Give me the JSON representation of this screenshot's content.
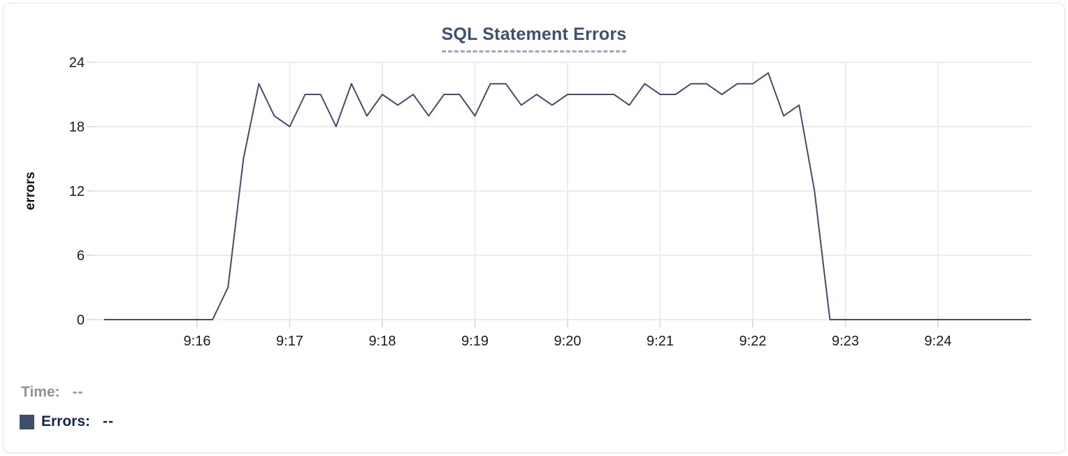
{
  "panel": {
    "title": "SQL Statement Errors"
  },
  "readout": {
    "time_label": "Time:",
    "time_value": "--",
    "errors_label": "Errors:",
    "errors_value": "--"
  },
  "colors": {
    "series": "#3f4e6c",
    "title": "#3d5070",
    "title_underline": "#9aa7c2",
    "gridline": "#ececec",
    "tick_mark": "#dedfe1",
    "tick_label": "#1b1b1b",
    "axis_label": "#111111",
    "time_readout": "#8f9296",
    "errors_readout": "#16254c",
    "card_border": "#e2e4e8"
  },
  "chart_data": {
    "type": "line",
    "title": "SQL Statement Errors",
    "xlabel": "",
    "ylabel": "errors",
    "ylim": [
      0,
      24
    ],
    "yticks": [
      0,
      6,
      12,
      18,
      24
    ],
    "xtick_labels": [
      "9:16",
      "9:17",
      "9:18",
      "9:19",
      "9:20",
      "9:21",
      "9:22",
      "9:23",
      "9:24"
    ],
    "x_range": [
      "9:15:00",
      "9:25:00"
    ],
    "x_interval_seconds": 10,
    "grid": true,
    "legend_position": "none",
    "series": [
      {
        "name": "Errors",
        "color": "#3f4e6c",
        "x": [
          "9:15:00",
          "9:15:10",
          "9:15:20",
          "9:15:30",
          "9:15:40",
          "9:15:50",
          "9:16:00",
          "9:16:10",
          "9:16:20",
          "9:16:30",
          "9:16:40",
          "9:16:50",
          "9:17:00",
          "9:17:10",
          "9:17:20",
          "9:17:30",
          "9:17:40",
          "9:17:50",
          "9:18:00",
          "9:18:10",
          "9:18:20",
          "9:18:30",
          "9:18:40",
          "9:18:50",
          "9:19:00",
          "9:19:10",
          "9:19:20",
          "9:19:30",
          "9:19:40",
          "9:19:50",
          "9:20:00",
          "9:20:10",
          "9:20:20",
          "9:20:30",
          "9:20:40",
          "9:20:50",
          "9:21:00",
          "9:21:10",
          "9:21:20",
          "9:21:30",
          "9:21:40",
          "9:21:50",
          "9:22:00",
          "9:22:10",
          "9:22:20",
          "9:22:30",
          "9:22:40",
          "9:22:50",
          "9:23:00",
          "9:23:10",
          "9:23:20",
          "9:23:30",
          "9:23:40",
          "9:23:50",
          "9:24:00",
          "9:24:10",
          "9:24:20",
          "9:24:30",
          "9:24:40",
          "9:24:50",
          "9:25:00"
        ],
        "values": [
          0,
          0,
          0,
          0,
          0,
          0,
          0,
          0,
          3,
          15,
          22,
          19,
          18,
          21,
          21,
          18,
          22,
          19,
          21,
          20,
          21,
          19,
          21,
          21,
          19,
          22,
          22,
          20,
          21,
          20,
          21,
          21,
          21,
          21,
          20,
          22,
          21,
          21,
          22,
          22,
          21,
          22,
          22,
          23,
          19,
          20,
          12,
          0,
          0,
          0,
          0,
          0,
          0,
          0,
          0,
          0,
          0,
          0,
          0,
          0,
          0
        ]
      }
    ]
  }
}
